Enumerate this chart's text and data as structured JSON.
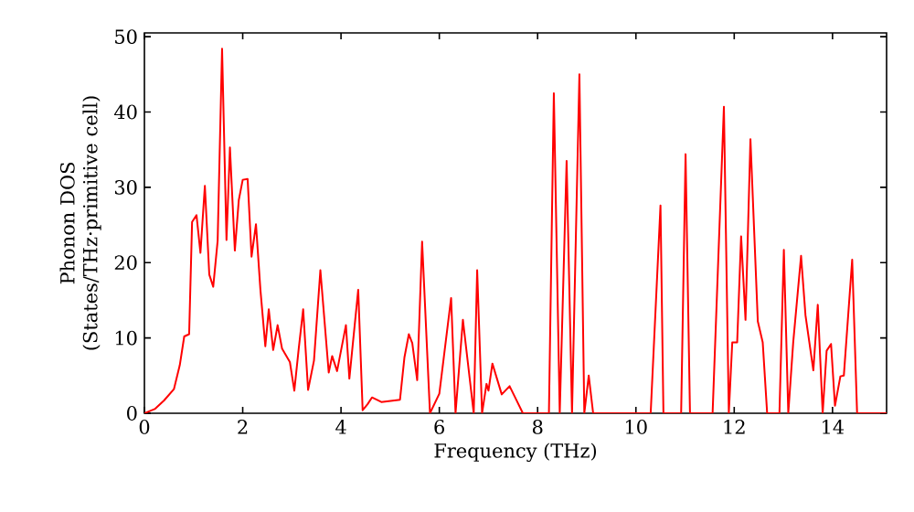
{
  "chart_data": {
    "type": "line",
    "xlabel": "Frequency (THz)",
    "ylabel": "Phonon DOS (States/THz·primitive cell)",
    "xlim": [
      0,
      15.1
    ],
    "ylim": [
      0,
      50.5
    ],
    "xticks": [
      0,
      2,
      4,
      6,
      8,
      10,
      12,
      14
    ],
    "yticks": [
      0,
      10,
      20,
      30,
      40,
      50
    ],
    "grid": false,
    "marker": "none",
    "line_style": "solid",
    "series": [
      {
        "color": "#ff0000",
        "x": [
          0,
          0.22,
          0.4,
          0.6,
          0.72,
          0.81,
          0.91,
          0.97,
          1.06,
          1.14,
          1.23,
          1.32,
          1.4,
          1.49,
          1.58,
          1.67,
          1.74,
          1.84,
          1.92,
          2.0,
          2.1,
          2.18,
          2.27,
          2.36,
          2.46,
          2.53,
          2.62,
          2.71,
          2.8,
          2.96,
          3.05,
          3.14,
          3.23,
          3.33,
          3.45,
          3.58,
          3.75,
          3.82,
          3.92,
          4.1,
          4.17,
          4.35,
          4.44,
          4.54,
          4.63,
          4.82,
          5.2,
          5.29,
          5.38,
          5.45,
          5.55,
          5.65,
          5.81,
          6.0,
          6.24,
          6.33,
          6.48,
          6.7,
          6.77,
          6.87,
          6.96,
          7.0,
          7.08,
          7.27,
          7.43,
          7.7,
          8.23,
          8.33,
          8.45,
          8.59,
          8.7,
          8.85,
          8.95,
          9.04,
          9.13,
          10.3,
          10.5,
          10.56,
          10.92,
          11.01,
          11.1,
          11.56,
          11.79,
          11.89,
          11.96,
          12.06,
          12.14,
          12.23,
          12.33,
          12.48,
          12.58,
          12.67,
          12.92,
          13.01,
          13.1,
          13.2,
          13.36,
          13.45,
          13.61,
          13.7,
          13.8,
          13.88,
          13.97,
          14.05,
          14.16,
          14.23,
          14.4,
          14.5,
          15.1
        ],
        "values": [
          0,
          0.6,
          1.7,
          3.2,
          6.4,
          10.2,
          10.5,
          25.4,
          26.3,
          21.3,
          30.2,
          18.4,
          16.8,
          22.9,
          48.4,
          23,
          35.3,
          21.6,
          28.3,
          31,
          31.1,
          20.8,
          25.1,
          16.4,
          8.9,
          13.8,
          8.4,
          11.7,
          8.6,
          6.8,
          3,
          8.6,
          13.8,
          3.1,
          7,
          19,
          5.4,
          7.6,
          5.6,
          11.7,
          4.6,
          16.4,
          0.4,
          1.2,
          2.1,
          1.5,
          1.8,
          7.4,
          10.5,
          9.3,
          4.4,
          22.8,
          0,
          2.6,
          15.3,
          0,
          12.4,
          0,
          19,
          0,
          3.9,
          3,
          6.6,
          2.5,
          3.6,
          0,
          0,
          42.5,
          0,
          33.5,
          0,
          45,
          0,
          5,
          0,
          0,
          27.6,
          0,
          0,
          34.4,
          0,
          0,
          40.7,
          0,
          9.4,
          9.4,
          23.5,
          12.4,
          36.4,
          12.2,
          9.4,
          0,
          0,
          21.7,
          0,
          9.4,
          20.9,
          13,
          5.7,
          14.4,
          0,
          8.3,
          9.2,
          1,
          4.9,
          5,
          20.4,
          0,
          0
        ]
      }
    ]
  }
}
